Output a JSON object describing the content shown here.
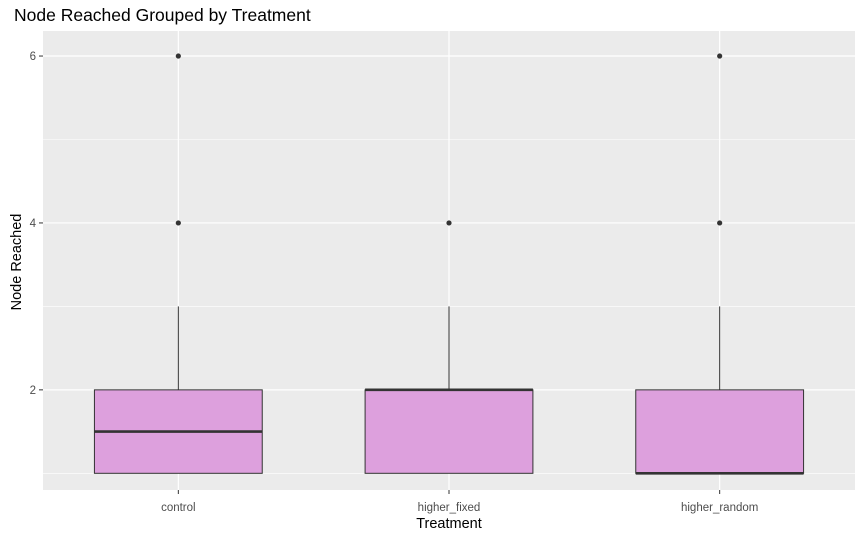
{
  "chart_data": {
    "type": "boxplot",
    "title": "Node Reached Grouped by Treatment",
    "xlabel": "Treatment",
    "ylabel": "Node Reached",
    "categories": [
      "control",
      "higher_fixed",
      "higher_random"
    ],
    "boxes": [
      {
        "category": "control",
        "min": 1,
        "q1": 1,
        "median": 1.5,
        "q3": 2,
        "max": 3,
        "outliers": [
          4,
          6
        ]
      },
      {
        "category": "higher_fixed",
        "min": 1,
        "q1": 1,
        "median": 2,
        "q3": 2,
        "max": 3,
        "outliers": [
          4
        ]
      },
      {
        "category": "higher_random",
        "min": 1,
        "q1": 1,
        "median": 1,
        "q3": 2,
        "max": 3,
        "outliers": [
          4,
          6
        ]
      }
    ],
    "ylim": [
      0.8,
      6.3
    ],
    "yticks": [
      2,
      4,
      6
    ],
    "grid": true,
    "colors": {
      "panel_bg": "#EBEBEB",
      "grid_major": "#FFFFFF",
      "box_fill": "#DDA0DD",
      "box_outline": "#333333",
      "tick_label": "#4D4D4D"
    }
  }
}
